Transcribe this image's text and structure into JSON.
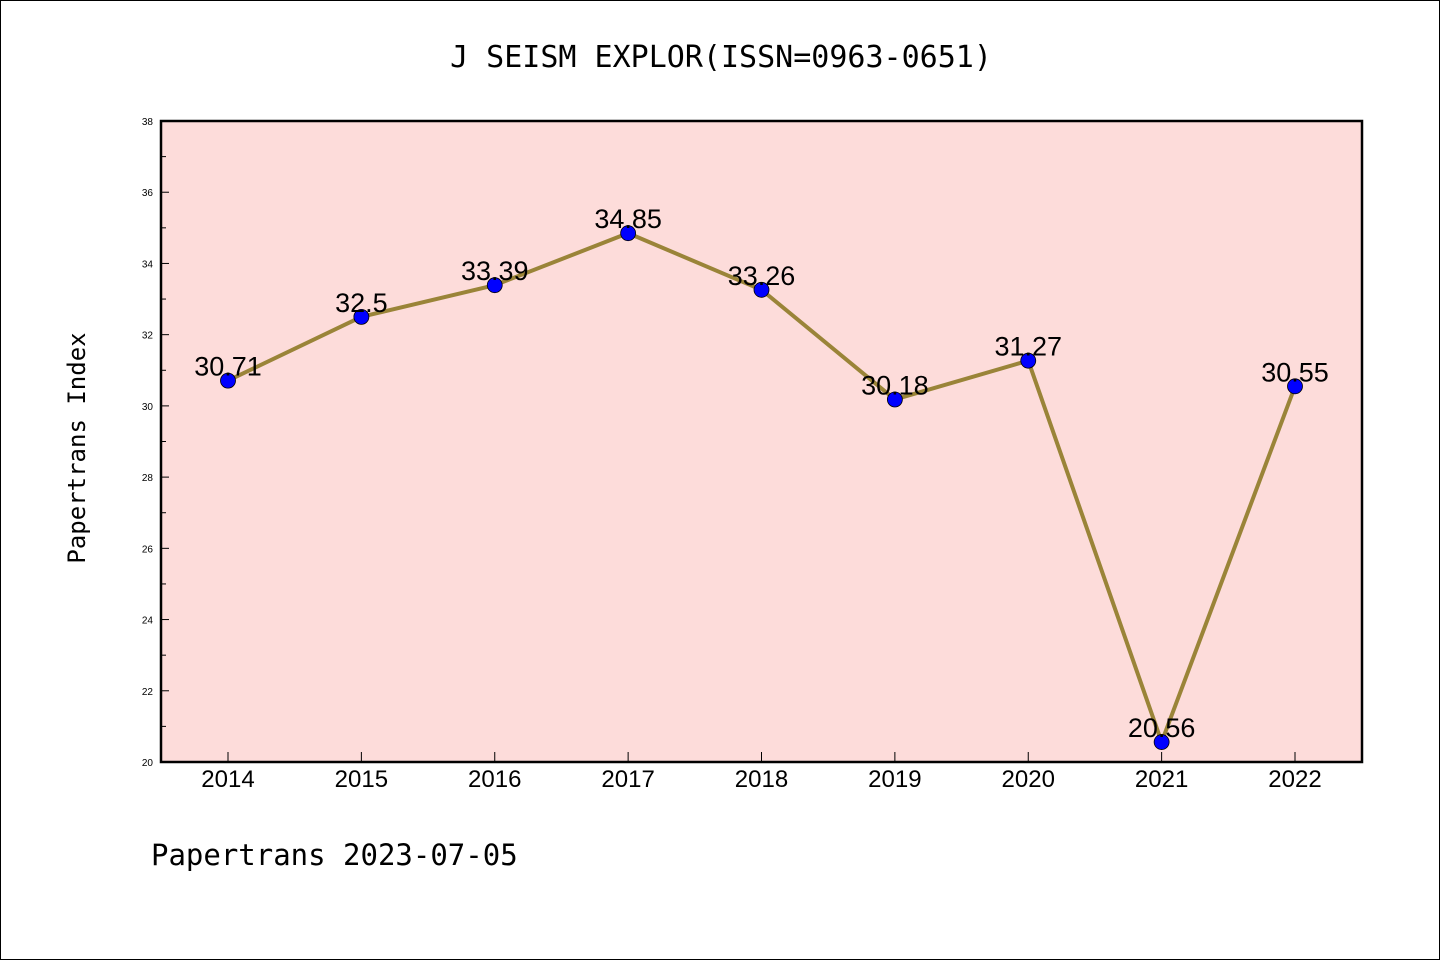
{
  "chart_data": {
    "type": "line",
    "title": "J SEISM EXPLOR(ISSN=0963-0651)",
    "xlabel": "",
    "ylabel": "Papertrans Index",
    "categories": [
      "2014",
      "2015",
      "2016",
      "2017",
      "2018",
      "2019",
      "2020",
      "2021",
      "2022"
    ],
    "series": [
      {
        "values": [
          30.71,
          32.5,
          33.39,
          34.85,
          33.26,
          30.18,
          31.27,
          20.56,
          30.55
        ]
      }
    ],
    "data_labels": [
      "30.71",
      "32.5",
      "33.39",
      "34.85",
      "33.26",
      "30.18",
      "31.27",
      "20.56",
      "30.55"
    ],
    "ylim": [
      20,
      38
    ],
    "yticks": [
      "20",
      "22",
      "24",
      "26",
      "28",
      "30",
      "32",
      "34",
      "36",
      "38"
    ],
    "grid": false,
    "legend": "none",
    "colors": {
      "plot_background": "#fddcda",
      "line": "#9a8438",
      "marker": "#0000ff"
    }
  },
  "footer": "Papertrans 2023-07-05"
}
